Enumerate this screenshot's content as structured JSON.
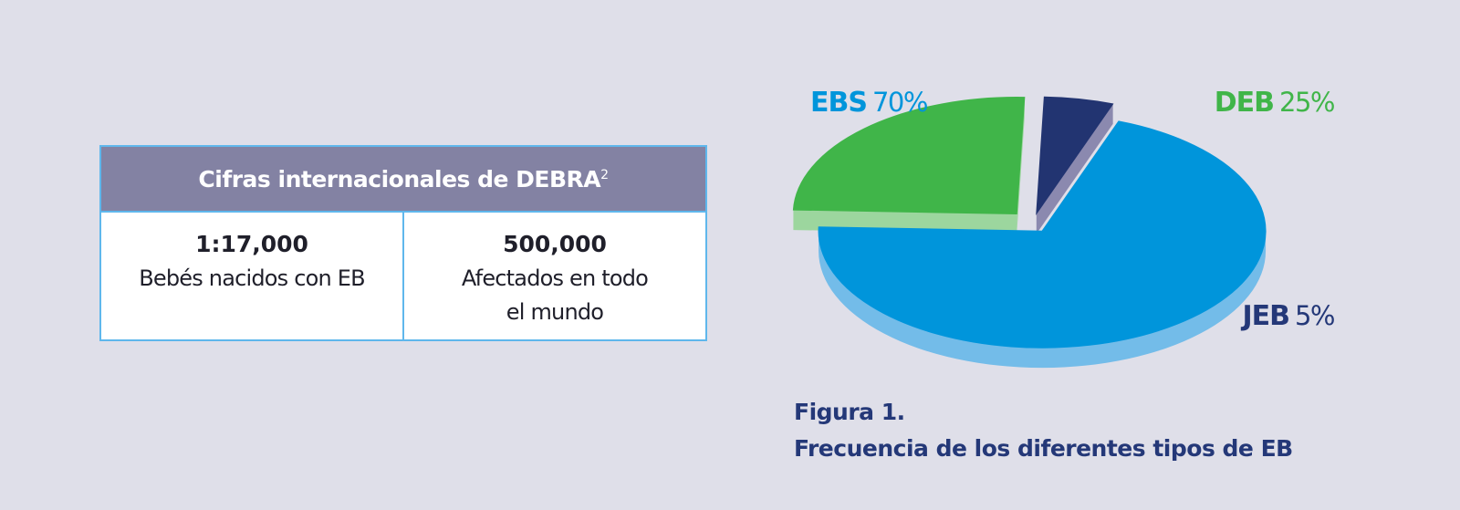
{
  "table": {
    "title": "Cifras internacionales de DEBRA",
    "title_superscript": "2",
    "cells": [
      {
        "value": "1:17,000",
        "desc_lines": [
          "Bebés nacidos con EB"
        ]
      },
      {
        "value": "500,000",
        "desc_lines": [
          "Afectados en todo",
          "el mundo"
        ]
      }
    ]
  },
  "chart_data": {
    "type": "pie",
    "title": "",
    "slices": [
      {
        "label": "EBS",
        "value": 70,
        "display": "70%",
        "color": "#0095db",
        "side_color": "#73bce9"
      },
      {
        "label": "DEB",
        "value": 25,
        "display": "25%",
        "color": "#40b549",
        "side_color": "#95d596"
      },
      {
        "label": "JEB",
        "value": 5,
        "display": "5%",
        "color": "#223471",
        "side_color": "#8280a8"
      }
    ]
  },
  "caption": {
    "line1": "Figura 1.",
    "line2": "Frecuencia de los diferentes tipos de EB"
  }
}
